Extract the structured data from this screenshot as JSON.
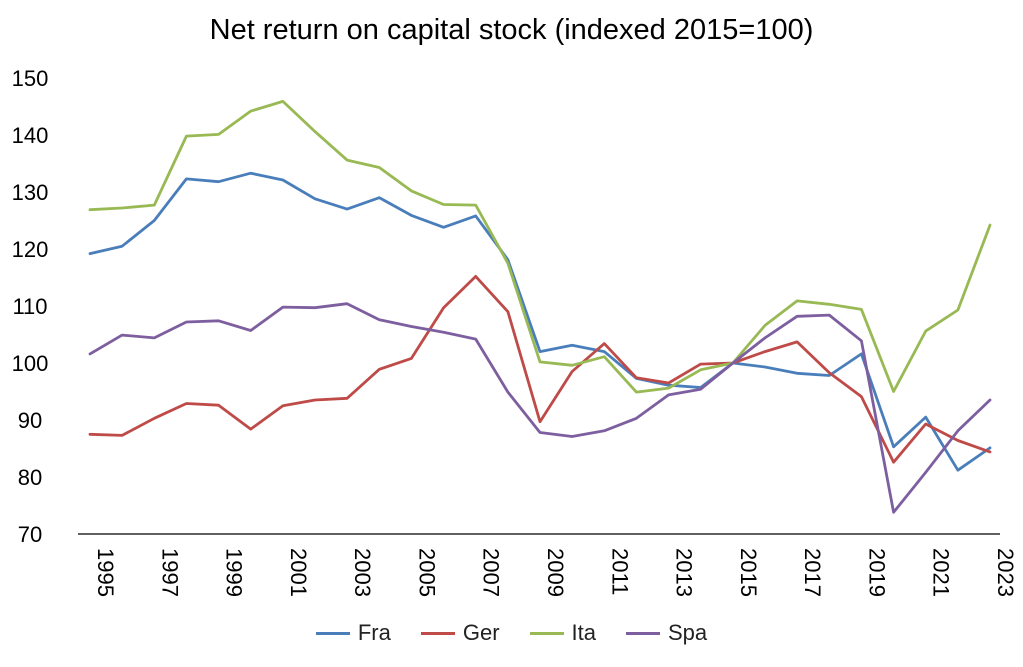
{
  "chart_data": {
    "type": "line",
    "title": "Net return on capital stock (indexed 2015=100)",
    "xlabel": "",
    "ylabel": "",
    "ylim": [
      70,
      150
    ],
    "yticks": [
      "70",
      "80",
      "90",
      "100",
      "110",
      "120",
      "130",
      "140",
      "150"
    ],
    "xlim": [
      1995,
      2023
    ],
    "xtick_labels": [
      "1995",
      "1997",
      "1999",
      "2001",
      "2003",
      "2005",
      "2007",
      "2009",
      "2011",
      "2013",
      "2015",
      "2017",
      "2019",
      "2021",
      "2023"
    ],
    "grid": false,
    "legend_position": "bottom",
    "x": [
      1995,
      1996,
      1997,
      1998,
      1999,
      2000,
      2001,
      2002,
      2003,
      2004,
      2005,
      2006,
      2007,
      2008,
      2009,
      2010,
      2011,
      2012,
      2013,
      2014,
      2015,
      2016,
      2017,
      2018,
      2019,
      2020,
      2021,
      2022,
      2023
    ],
    "series": [
      {
        "name": "Fra",
        "color": "#4a7ebb",
        "values": [
          119.2,
          120.5,
          125.0,
          132.3,
          131.8,
          133.3,
          132.1,
          128.8,
          127.0,
          129.0,
          125.9,
          123.8,
          125.8,
          118.1,
          102.0,
          103.1,
          102.0,
          97.3,
          96.1,
          95.7,
          100.0,
          99.3,
          98.2,
          97.8,
          101.6,
          85.3,
          90.5,
          81.2,
          85.1
        ]
      },
      {
        "name": "Ger",
        "color": "#be4b48",
        "values": [
          87.5,
          87.3,
          90.3,
          92.9,
          92.6,
          88.4,
          92.5,
          93.5,
          93.8,
          98.9,
          100.8,
          109.7,
          115.2,
          109.0,
          89.7,
          98.5,
          103.4,
          97.4,
          96.5,
          99.8,
          100.0,
          102.0,
          103.7,
          98.3,
          94.1,
          82.6,
          89.3,
          86.4,
          84.4
        ]
      },
      {
        "name": "Ita",
        "color": "#98b954",
        "values": [
          126.9,
          127.2,
          127.7,
          139.8,
          140.1,
          144.2,
          145.9,
          140.6,
          135.6,
          134.3,
          130.2,
          127.8,
          127.7,
          117.5,
          100.2,
          99.6,
          101.1,
          94.9,
          95.6,
          98.8,
          100.0,
          106.6,
          110.9,
          110.3,
          109.4,
          95.0,
          105.6,
          109.3,
          124.2
        ]
      },
      {
        "name": "Spa",
        "color": "#7d5fa0",
        "values": [
          101.6,
          104.9,
          104.4,
          107.2,
          107.4,
          105.7,
          109.8,
          109.7,
          110.4,
          107.6,
          106.4,
          105.4,
          104.2,
          94.9,
          87.8,
          87.1,
          88.1,
          90.3,
          94.4,
          95.4,
          100.0,
          104.4,
          108.2,
          108.4,
          103.9,
          73.8,
          80.8,
          88.1,
          93.5
        ]
      }
    ]
  }
}
